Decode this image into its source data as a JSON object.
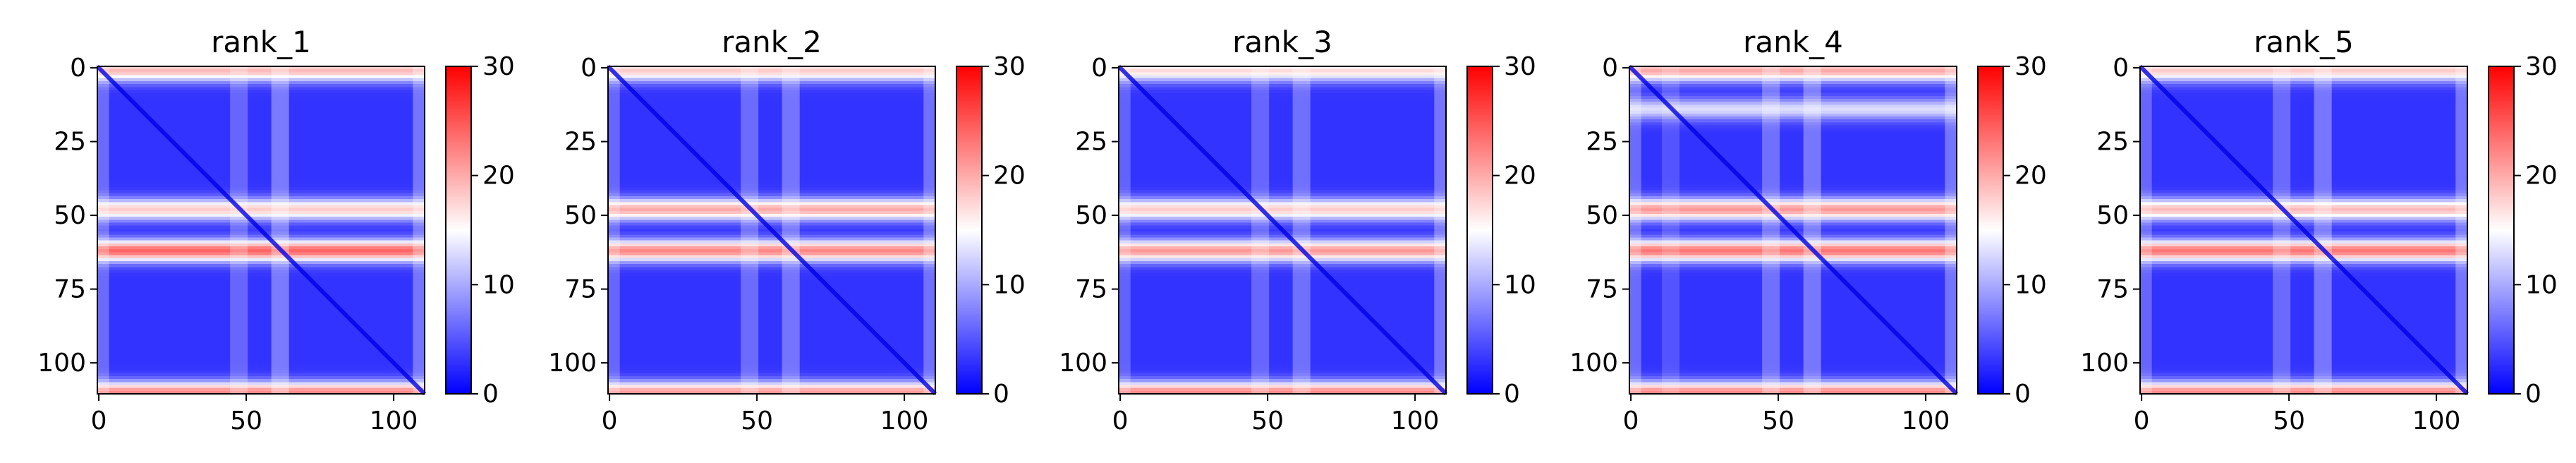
{
  "chart_data": [
    {
      "type": "heatmap",
      "title": "rank_1",
      "matrix_size": 111,
      "xticks": [
        "0",
        "50",
        "100"
      ],
      "yticks": [
        "0",
        "25",
        "50",
        "75",
        "100"
      ],
      "colorbar": {
        "ticks": [
          "0",
          "10",
          "20",
          "30"
        ],
        "min": 0,
        "max": 30,
        "colormap": "bwr",
        "colors": [
          "#0000ff",
          "#ffffff",
          "#ff0000"
        ]
      },
      "bands": [
        {
          "center": 48,
          "value": 18
        },
        {
          "center": 62,
          "value": 24
        },
        {
          "center": 110,
          "value": 22
        },
        {
          "center": 1,
          "value": 19
        }
      ]
    },
    {
      "type": "heatmap",
      "title": "rank_2",
      "matrix_size": 111,
      "xticks": [
        "0",
        "50",
        "100"
      ],
      "yticks": [
        "0",
        "25",
        "50",
        "75",
        "100"
      ],
      "colorbar": {
        "ticks": [
          "0",
          "10",
          "20",
          "30"
        ],
        "min": 0,
        "max": 30,
        "colormap": "bwr",
        "colors": [
          "#0000ff",
          "#ffffff",
          "#ff0000"
        ]
      },
      "bands": [
        {
          "center": 48,
          "value": 20
        },
        {
          "center": 62,
          "value": 22
        },
        {
          "center": 110,
          "value": 21
        },
        {
          "center": 1,
          "value": 18
        }
      ]
    },
    {
      "type": "heatmap",
      "title": "rank_3",
      "matrix_size": 111,
      "xticks": [
        "0",
        "50",
        "100"
      ],
      "yticks": [
        "0",
        "25",
        "50",
        "75",
        "100"
      ],
      "colorbar": {
        "ticks": [
          "0",
          "10",
          "20",
          "30"
        ],
        "min": 0,
        "max": 30,
        "colormap": "bwr",
        "colors": [
          "#0000ff",
          "#ffffff",
          "#ff0000"
        ]
      },
      "bands": [
        {
          "center": 48,
          "value": 18
        },
        {
          "center": 62,
          "value": 21
        },
        {
          "center": 110,
          "value": 22
        },
        {
          "center": 1,
          "value": 17
        }
      ]
    },
    {
      "type": "heatmap",
      "title": "rank_4",
      "matrix_size": 111,
      "xticks": [
        "0",
        "50",
        "100"
      ],
      "yticks": [
        "0",
        "25",
        "50",
        "75",
        "100"
      ],
      "colorbar": {
        "ticks": [
          "0",
          "10",
          "20",
          "30"
        ],
        "min": 0,
        "max": 30,
        "colormap": "bwr",
        "colors": [
          "#0000ff",
          "#ffffff",
          "#ff0000"
        ]
      },
      "bands": [
        {
          "center": 48,
          "value": 21
        },
        {
          "center": 62,
          "value": 23
        },
        {
          "center": 110,
          "value": 22
        },
        {
          "center": 1,
          "value": 20
        },
        {
          "center": 14,
          "value": 13
        }
      ]
    },
    {
      "type": "heatmap",
      "title": "rank_5",
      "matrix_size": 111,
      "xticks": [
        "0",
        "50",
        "100"
      ],
      "yticks": [
        "0",
        "25",
        "50",
        "75",
        "100"
      ],
      "colorbar": {
        "ticks": [
          "0",
          "10",
          "20",
          "30"
        ],
        "min": 0,
        "max": 30,
        "colormap": "bwr",
        "colors": [
          "#0000ff",
          "#ffffff",
          "#ff0000"
        ]
      },
      "bands": [
        {
          "center": 48,
          "value": 19
        },
        {
          "center": 62,
          "value": 23
        },
        {
          "center": 110,
          "value": 22
        },
        {
          "center": 1,
          "value": 18
        }
      ]
    }
  ]
}
